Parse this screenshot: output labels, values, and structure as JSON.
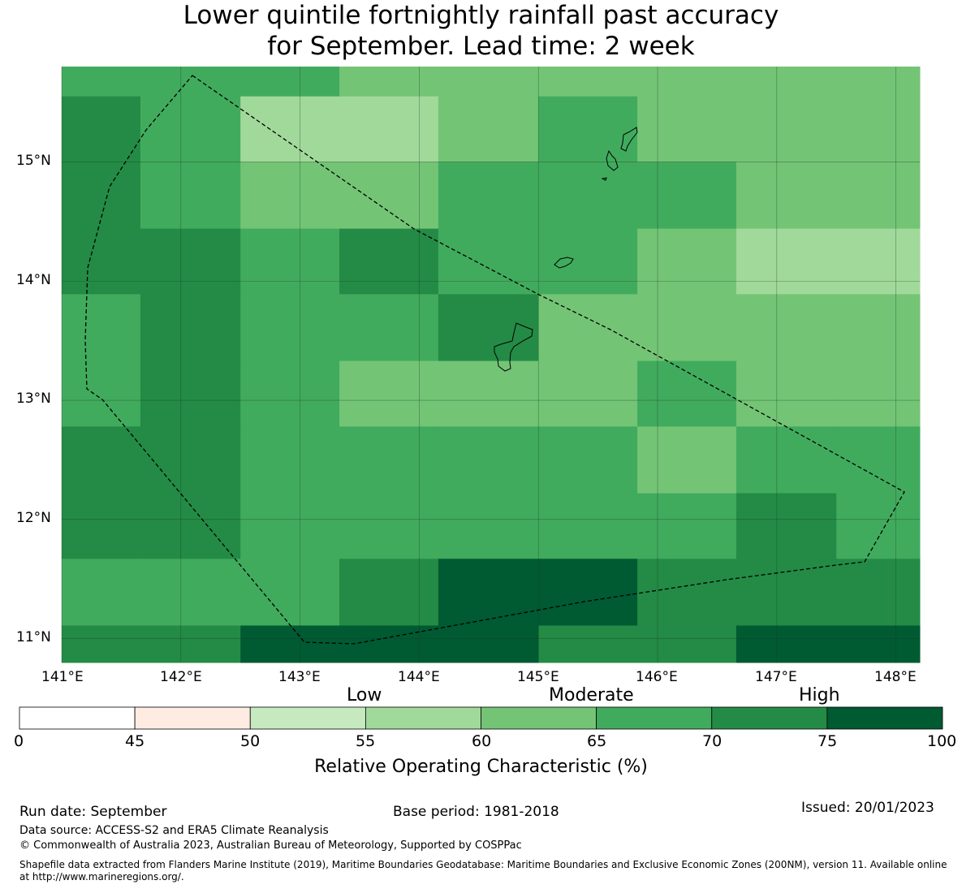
{
  "title": {
    "line1": "Lower quintile fortnightly rainfall past accuracy",
    "line2": "for September. Lead time: 2 week"
  },
  "map": {
    "lon_range": [
      141.0,
      148.2
    ],
    "lat_range": [
      10.8,
      15.8
    ],
    "lon_ticks": [
      "141°E",
      "142°E",
      "143°E",
      "144°E",
      "145°E",
      "146°E",
      "147°E",
      "148°E"
    ],
    "lat_ticks": [
      "15°N",
      "14°N",
      "13°N",
      "12°N",
      "11°N"
    ],
    "lon_edges": [
      141.0,
      141.66,
      142.5,
      143.33,
      144.16,
      145.0,
      145.83,
      146.66,
      147.5,
      148.2
    ],
    "lat_edges": [
      15.8,
      15.55,
      15.0,
      14.44,
      13.89,
      13.33,
      12.78,
      12.22,
      11.67,
      11.11,
      10.8
    ],
    "roc_grid": [
      [
        67,
        67,
        67,
        62,
        62,
        62,
        62,
        62,
        62
      ],
      [
        72,
        67,
        57,
        57,
        62,
        67,
        62,
        62,
        62
      ],
      [
        72,
        67,
        62,
        62,
        67,
        67,
        67,
        62,
        62
      ],
      [
        72,
        72,
        67,
        72,
        67,
        67,
        62,
        57,
        57
      ],
      [
        67,
        72,
        67,
        67,
        72,
        62,
        62,
        62,
        62
      ],
      [
        67,
        72,
        67,
        62,
        62,
        62,
        67,
        62,
        62
      ],
      [
        72,
        72,
        67,
        67,
        67,
        67,
        62,
        67,
        67
      ],
      [
        72,
        72,
        67,
        67,
        67,
        67,
        67,
        72,
        67
      ],
      [
        67,
        67,
        67,
        72,
        77,
        77,
        72,
        72,
        72
      ],
      [
        72,
        72,
        77,
        77,
        77,
        72,
        72,
        77,
        77
      ]
    ]
  },
  "colorbar": {
    "category_labels": [
      "Low",
      "Moderate",
      "High"
    ],
    "tick_labels": [
      "0",
      "45",
      "50",
      "55",
      "60",
      "65",
      "70",
      "75",
      "100"
    ],
    "colors": [
      "#ffffff",
      "#feebe2",
      "#c7e9c0",
      "#a1d99b",
      "#74c476",
      "#41ab5d",
      "#238b45",
      "#005a32"
    ],
    "title": "Relative Operating Characteristic (%)"
  },
  "footer": {
    "run_date": "Run date: September",
    "base_period": "Base period: 1981-2018",
    "issued": "Issued: 20/01/2023",
    "data_source": "Data source: ACCESS-S2 and ERA5 Climate Reanalysis",
    "copyright": "© Commonwealth of Australia 2023, Australian Bureau of Meteorology, Supported by COSPPac",
    "shapefile_1": "Shapefile data extracted from Flanders Marine Institute (2019), Maritime Boundaries Geodatabase: Maritime Boundaries and Exclusive Economic Zones (200NM), version 11. Available online",
    "shapefile_2": "at http://www.marineregions.org/."
  }
}
